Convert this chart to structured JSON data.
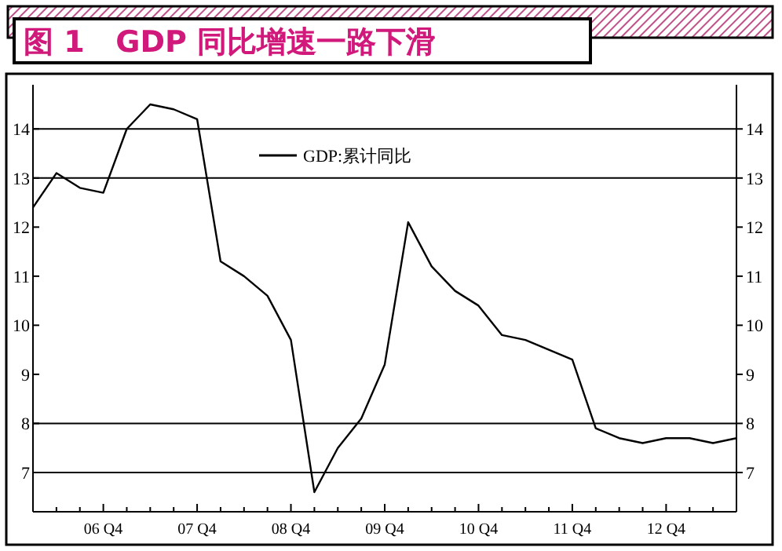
{
  "chart_data": {
    "type": "line",
    "title": "图 1   GDP 同比增速一路下滑",
    "categories": [
      null,
      null,
      null,
      "06 Q4",
      null,
      null,
      null,
      "07 Q4",
      null,
      null,
      null,
      "08 Q4",
      null,
      null,
      null,
      "09 Q4",
      null,
      null,
      null,
      "10 Q4",
      null,
      null,
      null,
      "11 Q4",
      null,
      null,
      null,
      "12 Q4",
      null,
      null,
      null
    ],
    "series": [
      {
        "name": "GDP:累计同比",
        "color": "#000000",
        "values": [
          12.4,
          13.1,
          12.8,
          12.7,
          14.0,
          14.5,
          14.4,
          14.2,
          11.3,
          11.0,
          10.6,
          9.7,
          6.6,
          7.5,
          8.1,
          9.2,
          12.1,
          11.2,
          10.7,
          10.4,
          9.8,
          9.7,
          9.5,
          9.3,
          7.9,
          7.7,
          7.6,
          7.7,
          7.7,
          7.6,
          7.7
        ]
      }
    ],
    "ylim": [
      6.2,
      14.9
    ],
    "yticks": [
      7,
      8,
      9,
      10,
      11,
      12,
      13,
      14
    ],
    "y2lim": [
      6.2,
      14.9
    ],
    "y2ticks": [
      7,
      8,
      9,
      10,
      11,
      12,
      13,
      14
    ],
    "ref_lines": [
      {
        "axis": "y",
        "value": 7
      },
      {
        "axis": "y",
        "value": 8
      },
      {
        "axis": "y",
        "value": 13
      },
      {
        "axis": "y",
        "value": 14
      }
    ],
    "grid": false,
    "legend": "top",
    "marker": "none",
    "line_style": "solid"
  }
}
